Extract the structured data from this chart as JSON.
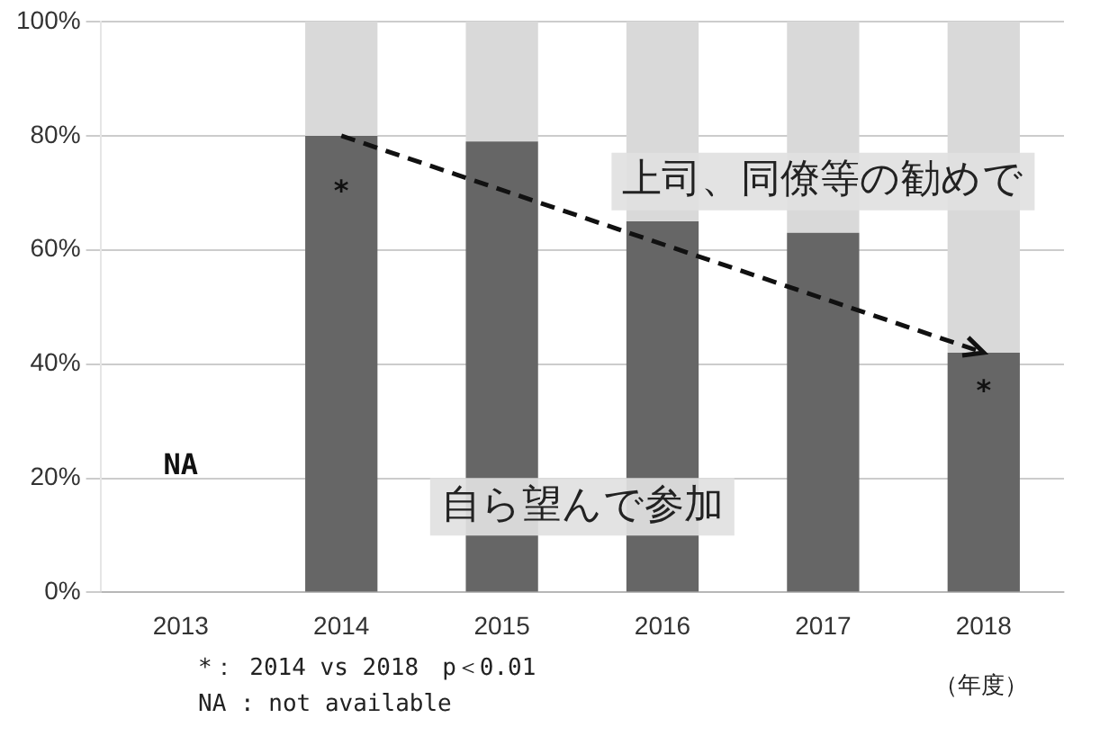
{
  "chart_data": {
    "type": "bar",
    "stacked": true,
    "categories": [
      "2013",
      "2014",
      "2015",
      "2016",
      "2017",
      "2018"
    ],
    "series": [
      {
        "name": "自ら望んで参加",
        "color": "#666666",
        "values": [
          null,
          80,
          79,
          65,
          63,
          42
        ]
      },
      {
        "name": "上司、同僚等の勧めで",
        "color": "#d9d9d9",
        "values": [
          null,
          20,
          21,
          35,
          37,
          58
        ]
      }
    ],
    "ylim": [
      0,
      100
    ],
    "yticks": [
      {
        "value": 0,
        "label": "0%"
      },
      {
        "value": 20,
        "label": "20%"
      },
      {
        "value": 40,
        "label": "40%"
      },
      {
        "value": 60,
        "label": "60%"
      },
      {
        "value": 80,
        "label": "80%"
      },
      {
        "value": 100,
        "label": "100%"
      }
    ],
    "grid": "y",
    "legend": false,
    "xlabel": "（年度）",
    "annotations": [
      "NA",
      "*",
      "*",
      "*： 2014 vs 2018　p＜0.01",
      "NA : not available"
    ]
  }
}
